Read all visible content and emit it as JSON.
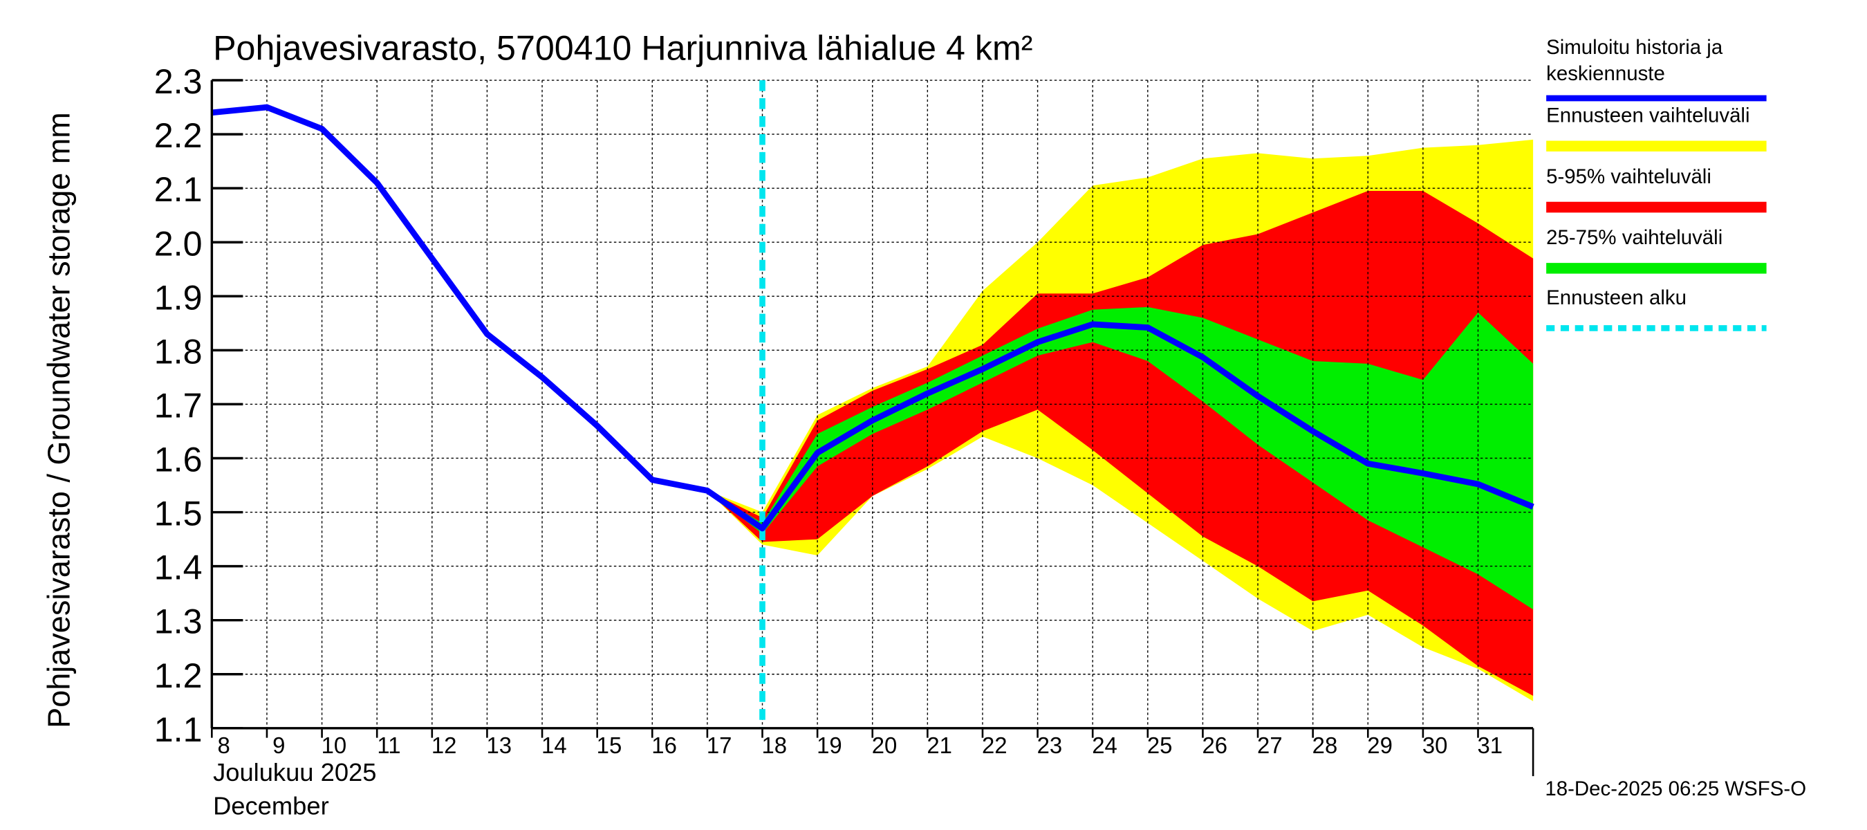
{
  "chart_data": {
    "type": "area",
    "title": "Pohjavesivarasto, 5700410 Harjunniva lähialue 4 km²",
    "ylabel": "Pohjavesivarasto / Groundwater storage   mm",
    "ylim": [
      1.1,
      2.3
    ],
    "yticks": [
      "1.1",
      "1.2",
      "1.3",
      "1.4",
      "1.5",
      "1.6",
      "1.7",
      "1.8",
      "1.9",
      "2.0",
      "2.1",
      "2.2",
      "2.3"
    ],
    "xlim": [
      8,
      32
    ],
    "xticks": [
      "8",
      "9",
      "10",
      "11",
      "12",
      "13",
      "14",
      "15",
      "16",
      "17",
      "18",
      "19",
      "20",
      "21",
      "22",
      "23",
      "24",
      "25",
      "26",
      "27",
      "28",
      "29",
      "30",
      "31"
    ],
    "xlabel_line1": "Joulukuu  2025",
    "xlabel_line2": "December",
    "footer": "18-Dec-2025 06:25 WSFS-O",
    "forecast_start": 18,
    "grid": true,
    "legend_position": "right",
    "legend": [
      {
        "label_line1": "Simuloitu historia ja",
        "label_line2": "keskiennuste",
        "color": "#0000ff",
        "style": "line"
      },
      {
        "label_line1": "Ennusteen vaihteluväli",
        "label_line2": "",
        "color": "#ffff00",
        "style": "band"
      },
      {
        "label_line1": "5-95% vaihteluväli",
        "label_line2": "",
        "color": "#ff0000",
        "style": "band"
      },
      {
        "label_line1": "25-75% vaihteluväli",
        "label_line2": "",
        "color": "#00ee00",
        "style": "band"
      },
      {
        "label_line1": "Ennusteen alku",
        "label_line2": "",
        "color": "#00e5ee",
        "style": "dashed"
      }
    ],
    "median": {
      "x": [
        8,
        9,
        10,
        11,
        12,
        13,
        14,
        15,
        16,
        17,
        18,
        19,
        20,
        21,
        22,
        23,
        24,
        25,
        26,
        27,
        28,
        29,
        30,
        31,
        32
      ],
      "y": [
        2.24,
        2.25,
        2.21,
        2.11,
        1.97,
        1.83,
        1.75,
        1.66,
        1.56,
        1.54,
        1.47,
        1.61,
        1.67,
        1.72,
        1.765,
        1.815,
        1.848,
        1.842,
        1.787,
        1.715,
        1.65,
        1.59,
        1.572,
        1.552,
        1.51
      ]
    },
    "bands": {
      "x": [
        17,
        18,
        19,
        20,
        21,
        22,
        23,
        24,
        25,
        26,
        27,
        28,
        29,
        30,
        31,
        32
      ],
      "range_upper": [
        1.54,
        1.5,
        1.68,
        1.73,
        1.77,
        1.91,
        2.0,
        2.105,
        2.12,
        2.155,
        2.165,
        2.155,
        2.16,
        2.175,
        2.18,
        2.19
      ],
      "range_lower": [
        1.54,
        1.44,
        1.42,
        1.53,
        1.58,
        1.64,
        1.6,
        1.55,
        1.48,
        1.41,
        1.34,
        1.28,
        1.31,
        1.25,
        1.21,
        1.15
      ],
      "p95": [
        1.54,
        1.49,
        1.67,
        1.725,
        1.765,
        1.81,
        1.905,
        1.905,
        1.935,
        1.995,
        2.015,
        2.055,
        2.095,
        2.095,
        2.035,
        1.97
      ],
      "p5": [
        1.54,
        1.445,
        1.45,
        1.53,
        1.585,
        1.65,
        1.69,
        1.615,
        1.535,
        1.455,
        1.4,
        1.335,
        1.355,
        1.29,
        1.215,
        1.16
      ],
      "p75": [
        1.54,
        1.48,
        1.645,
        1.695,
        1.74,
        1.79,
        1.84,
        1.875,
        1.88,
        1.86,
        1.82,
        1.78,
        1.775,
        1.745,
        1.87,
        1.775
      ],
      "p25": [
        1.54,
        1.46,
        1.585,
        1.645,
        1.69,
        1.74,
        1.79,
        1.815,
        1.78,
        1.705,
        1.625,
        1.555,
        1.485,
        1.435,
        1.385,
        1.32
      ]
    }
  }
}
